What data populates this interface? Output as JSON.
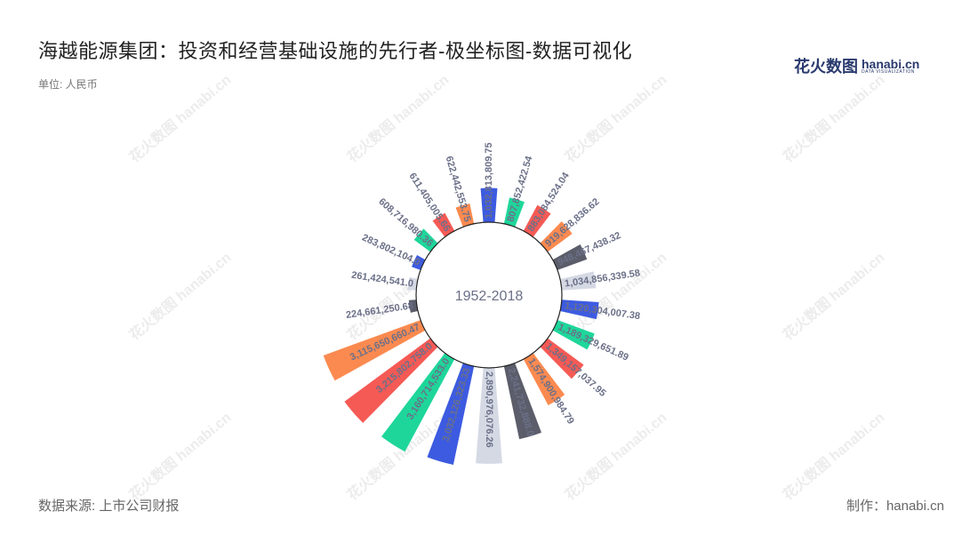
{
  "header": {
    "title": "海越能源集团：投资和经营基础设施的先行者-极坐标图-数据可视化",
    "unit": "单位: 人民币"
  },
  "logo": {
    "cn": "花火数图",
    "en": "hanabi.cn",
    "sub": "DATA VISUALIZATION"
  },
  "footer": {
    "source": "数据来源: 上市公司财报",
    "credit": "制作：hanabi.cn"
  },
  "watermark_text": "花火数图 hanabi.cn",
  "colors": {
    "palette": [
      "#3d5be0",
      "#1ed69a",
      "#f55a55",
      "#fb8a50",
      "#5b5d6a",
      "#d5d9e4"
    ],
    "label": "#6b7088",
    "center_text": "#6b7088"
  },
  "chart_data": {
    "type": "polar-bar",
    "center_label": "1952-2018",
    "values": [
      1032813809.75,
      807852422.54,
      883084524.04,
      919628836.62,
      948467438.32,
      1034856339.58,
      1120304007.38,
      1189329651.89,
      1349157037.95,
      1574900984.79,
      2241732888.0,
      2890976076.26,
      3032126323.33,
      3160714533.0,
      3215802758.0,
      3115650660.47,
      224661250.68,
      261424541.0,
      283802104.0,
      608716980.36,
      611405005.66,
      622442553.75
    ],
    "labels": [
      "1,032,813,809.75",
      "807,852,422.54",
      "883,084,524.04",
      "919,628,836.62",
      "948,467,438.32",
      "1,034,856,339.58",
      "1,120,304,007.38",
      "1,189,329,651.89",
      "1,349,157,037.95",
      "1,574,900,984.79",
      "2,241,732,888.0",
      "2,890,976,076.26",
      "3,032,126,323.33",
      "3,160,714,533.0",
      "3,215,802,758.0",
      "3,115,650,660.47",
      "224,661,250.68",
      "261,424,541.0",
      "283,802,104.0",
      "608,716,980.36",
      "611,405,005.66",
      "622,442,553.75"
    ]
  }
}
